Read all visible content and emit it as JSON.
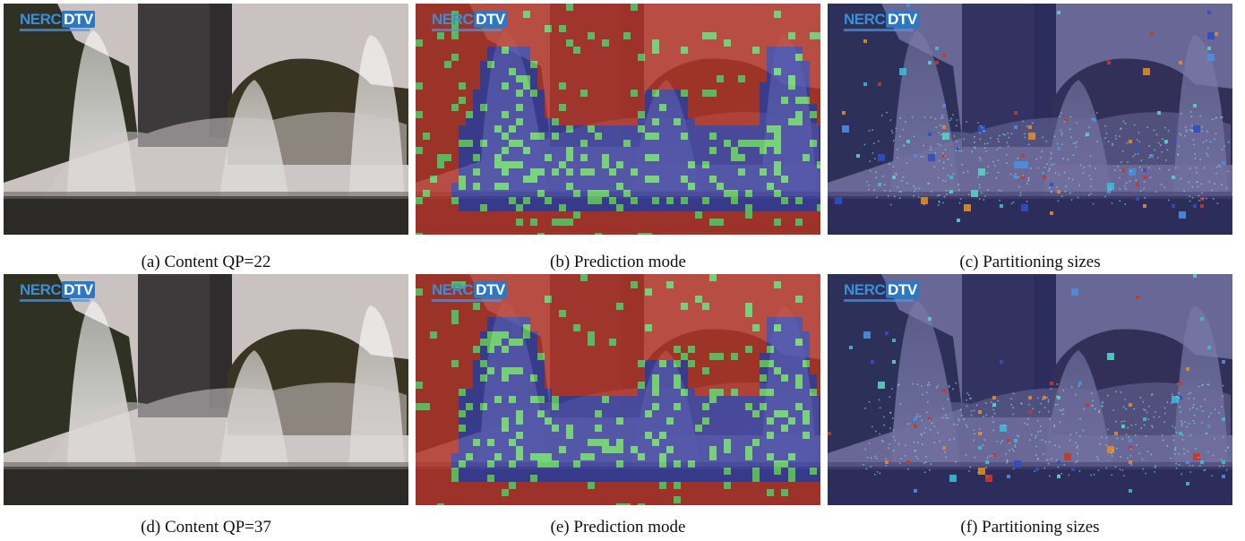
{
  "logo": {
    "part1": "NERC",
    "part2": "DTV"
  },
  "panels": [
    {
      "caption": "(a) Content QP=22",
      "overlay": "none",
      "seed": 3
    },
    {
      "caption": "(b) Prediction mode",
      "overlay": "mode",
      "seed": 11
    },
    {
      "caption": "(c) Partitioning sizes",
      "overlay": "partition",
      "seed": 21
    },
    {
      "caption": "(d) Content QP=37",
      "overlay": "none",
      "seed": 5
    },
    {
      "caption": "(e) Prediction mode",
      "overlay": "mode",
      "seed": 37
    },
    {
      "caption": "(f) Partitioning sizes",
      "overlay": "partition",
      "seed": 53
    }
  ],
  "colors": {
    "sky": "#c9c2c0",
    "building": "#3d3a3c",
    "trees": "#2f3222",
    "water_spray": "#e6e4e4",
    "pond": "#2c2a26",
    "mode_red": "#b5342a",
    "mode_blue": "#3a3ea0",
    "mode_green": "#66d46a",
    "partition_base": "#2d2e7a"
  }
}
